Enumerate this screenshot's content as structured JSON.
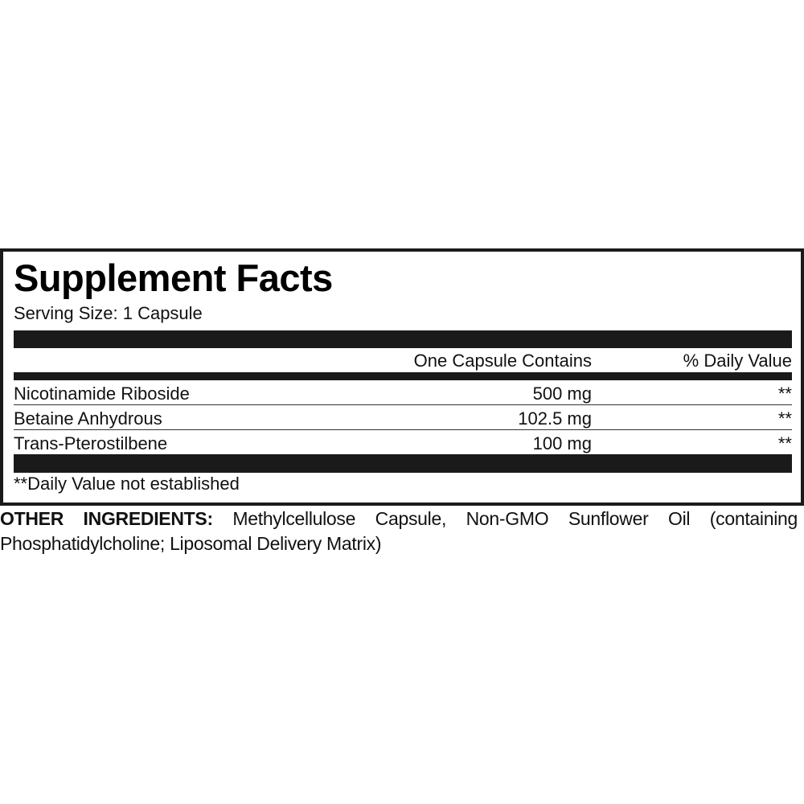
{
  "label": {
    "title": "Supplement Facts",
    "serving_size": "Serving Size: 1 Capsule",
    "header": {
      "amount_col": "One Capsule Contains",
      "dv_col": "% Daily Value"
    },
    "rows": [
      {
        "name": "Nicotinamide Riboside",
        "amount": "500 mg",
        "dv": "**"
      },
      {
        "name": "Betaine Anhydrous",
        "amount": "102.5 mg",
        "dv": "**"
      },
      {
        "name": "Trans-Pterostilbene",
        "amount": "100 mg",
        "dv": "**"
      }
    ],
    "footnote": "**Daily Value not established"
  },
  "other_ingredients": {
    "heading": "OTHER INGREDIENTS:",
    "text": "Methylcellulose Capsule, Non-GMO Sunflower Oil (containing Phosphatidylcholine; Liposomal Delivery Matrix)"
  }
}
